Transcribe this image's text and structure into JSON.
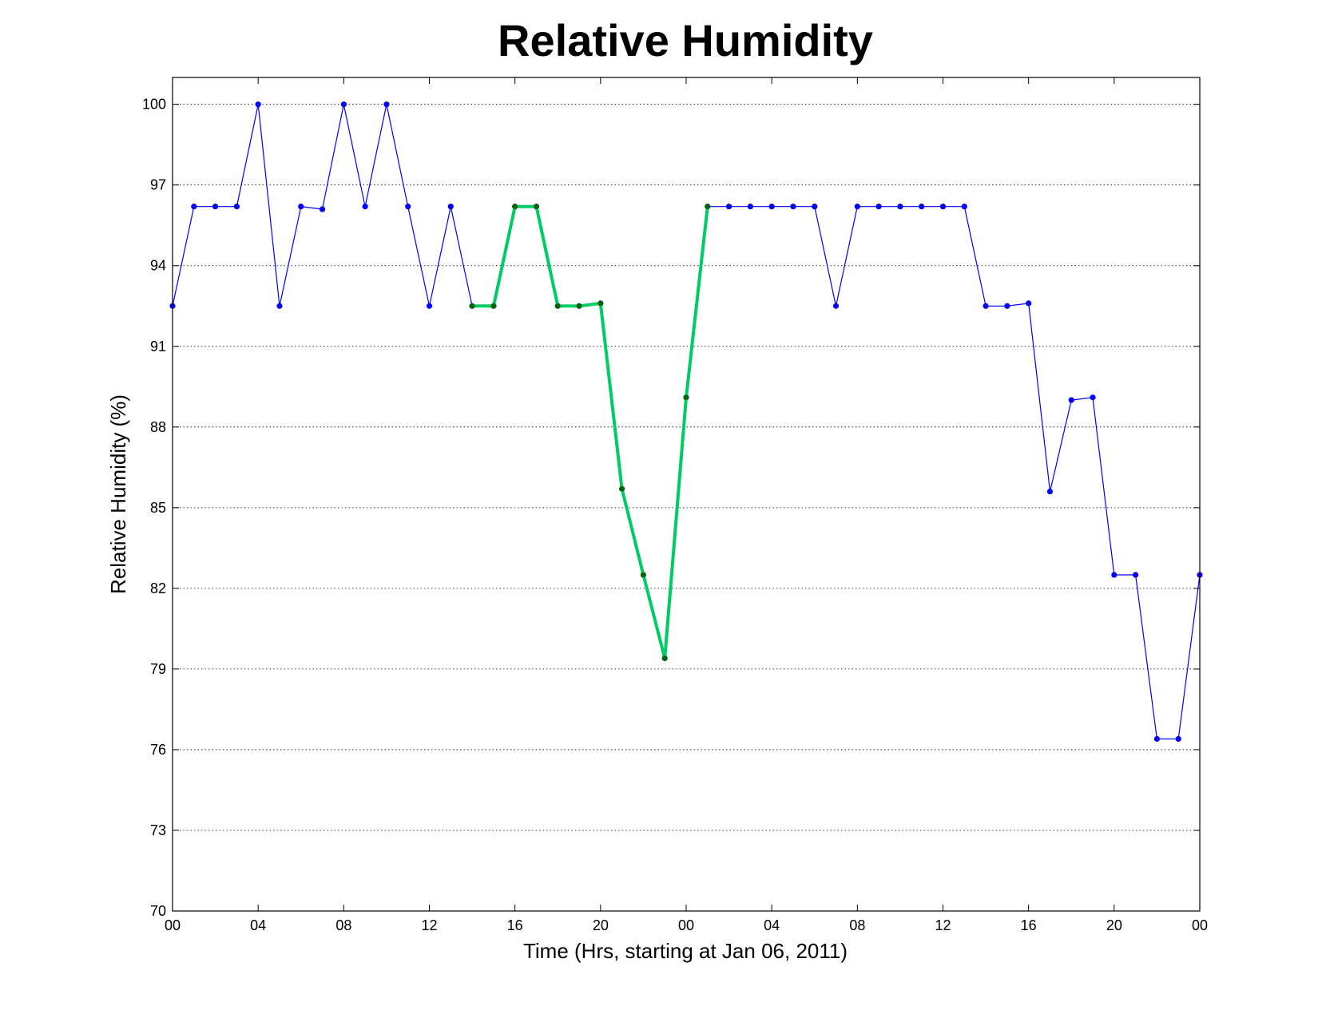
{
  "chart_data": {
    "type": "line",
    "title": "Relative Humidity",
    "xlabel": "Time (Hrs, starting at Jan 06, 2011)",
    "ylabel": "Relative Humidity (%)",
    "xlim": [
      0,
      48
    ],
    "ylim": [
      70,
      101
    ],
    "x_tick_values": [
      0,
      4,
      8,
      12,
      16,
      20,
      24,
      28,
      32,
      36,
      40,
      44,
      48
    ],
    "x_tick_labels": [
      "00",
      "04",
      "08",
      "12",
      "16",
      "20",
      "00",
      "04",
      "08",
      "12",
      "16",
      "20",
      "00"
    ],
    "y_ticks": [
      70,
      73,
      76,
      79,
      82,
      85,
      88,
      91,
      94,
      97,
      100
    ],
    "grid": "horizontal-dotted",
    "legend": "none",
    "series": [
      {
        "color": "#0000ff",
        "x": [
          0,
          1,
          2,
          3,
          4,
          5,
          6,
          7,
          8,
          9,
          10,
          11,
          12,
          13,
          14,
          15,
          16,
          17,
          18,
          19,
          20,
          21,
          22,
          23,
          24,
          25,
          26,
          27,
          28,
          29,
          30,
          31,
          32,
          33,
          34,
          35,
          36,
          37,
          38,
          39,
          40,
          41,
          42,
          43,
          44,
          45,
          46,
          47,
          48
        ],
        "y": [
          92.5,
          96.2,
          96.2,
          96.2,
          100,
          92.5,
          96.2,
          96.1,
          100,
          96.2,
          100,
          96.2,
          92.5,
          96.2,
          92.5,
          92.5,
          96.2,
          96.2,
          92.5,
          92.5,
          92.6,
          85.7,
          82.5,
          79.4,
          89.1,
          96.2,
          96.2,
          96.2,
          96.2,
          96.2,
          96.2,
          92.5,
          96.2,
          96.2,
          96.2,
          96.2,
          96.2,
          96.2,
          92.5,
          92.5,
          92.6,
          85.6,
          89.0,
          89.1,
          82.5,
          82.5,
          76.4,
          76.4,
          82.5
        ]
      },
      {
        "color": "#00cc66",
        "marker_color": "#006600",
        "x": [
          14,
          15,
          16,
          17,
          18,
          19,
          20,
          21,
          22,
          23,
          24,
          25
        ],
        "y": [
          92.5,
          92.5,
          96.2,
          96.2,
          92.5,
          92.5,
          92.6,
          85.7,
          82.5,
          79.4,
          89.1,
          96.2
        ]
      }
    ]
  }
}
